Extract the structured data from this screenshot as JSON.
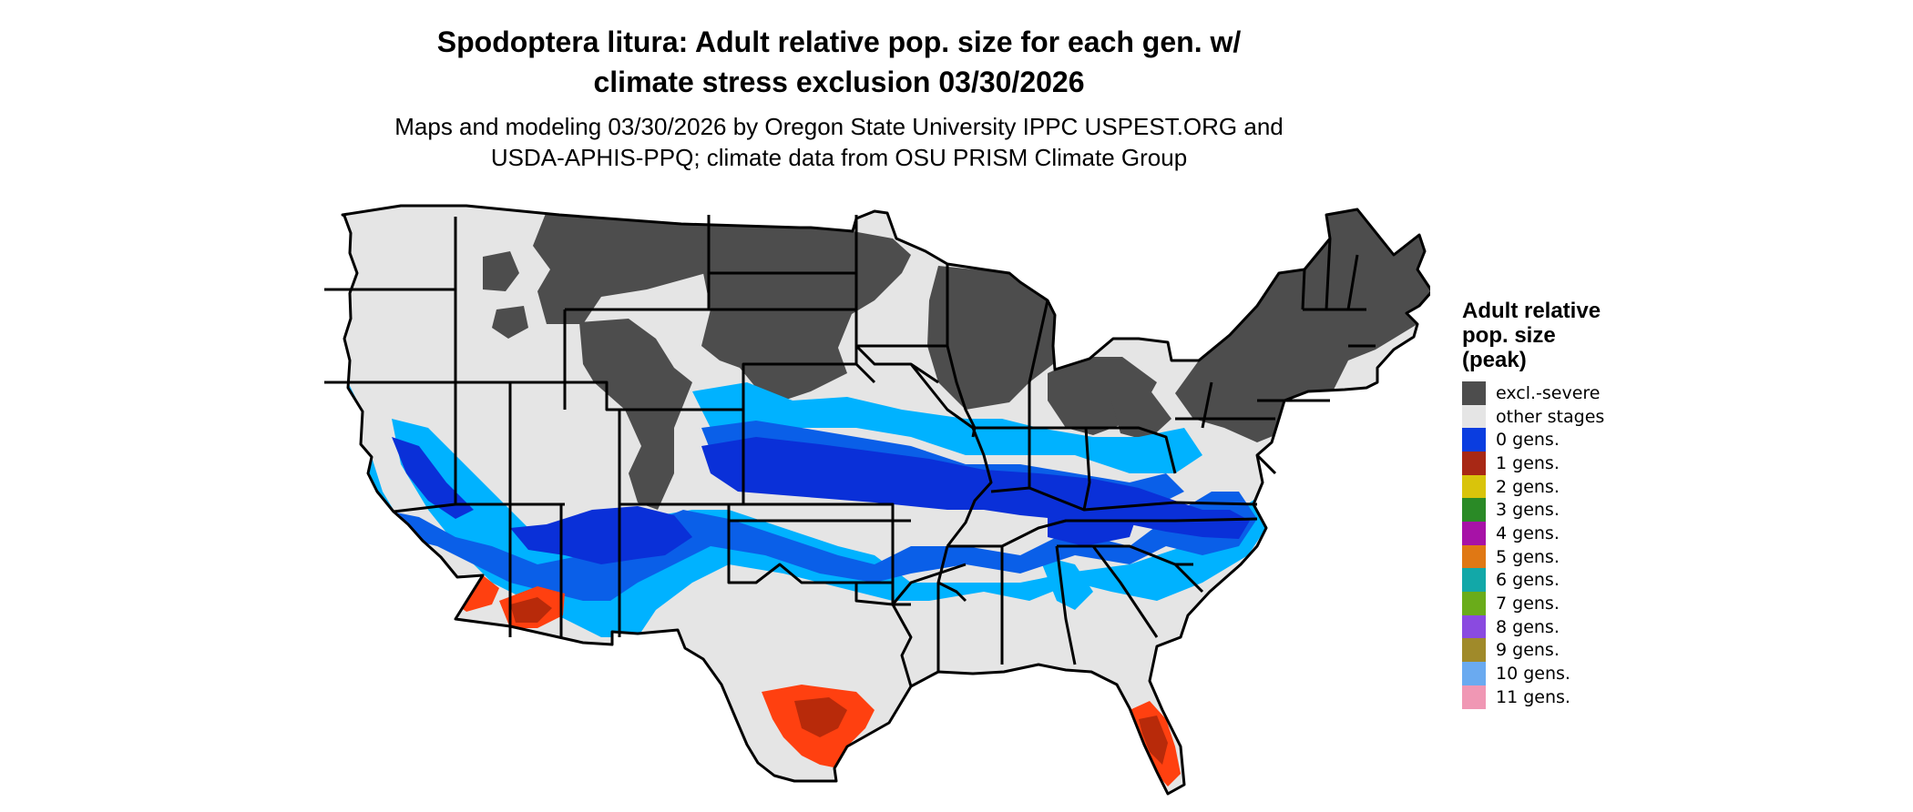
{
  "title": "Spodoptera litura: Adult relative pop. size for each gen. w/\nclimate stress exclusion 03/30/2026",
  "subtitle": "Maps and modeling 03/30/2026 by Oregon State University IPPC USPEST.ORG and\nUSDA-APHIS-PPQ; climate data from OSU PRISM Climate Group",
  "legend": {
    "title": "Adult relative\npop. size\n(peak)",
    "items": [
      {
        "label": "excl.-severe",
        "color": "#4d4d4d"
      },
      {
        "label": "other stages",
        "color": "#e5e5e5"
      },
      {
        "label": "0 gens.",
        "color": "#0a3de0"
      },
      {
        "label": "1 gens.",
        "color": "#a82815"
      },
      {
        "label": "2 gens.",
        "color": "#d9c40b"
      },
      {
        "label": "3 gens.",
        "color": "#2a8a26"
      },
      {
        "label": "4 gens.",
        "color": "#a712a7"
      },
      {
        "label": "5 gens.",
        "color": "#e07814"
      },
      {
        "label": "6 gens.",
        "color": "#12a8a8"
      },
      {
        "label": "7 gens.",
        "color": "#6aac1a"
      },
      {
        "label": "8 gens.",
        "color": "#8a4ae0"
      },
      {
        "label": "9 gens.",
        "color": "#a08a2a"
      },
      {
        "label": "10 gens.",
        "color": "#6aaaf0"
      },
      {
        "label": "11 gens.",
        "color": "#f097b4"
      }
    ]
  },
  "map": {
    "region": "contiguous-united-states",
    "colors": {
      "excluded": "#4d4d4d",
      "other": "#e5e5e5",
      "zero_light": "#00b2ff",
      "zero_mid": "#0a5fe8",
      "zero_dark": "#0a30d8",
      "one_light": "#ff4010",
      "one_dark": "#b82a0a",
      "border": "#000000"
    }
  }
}
